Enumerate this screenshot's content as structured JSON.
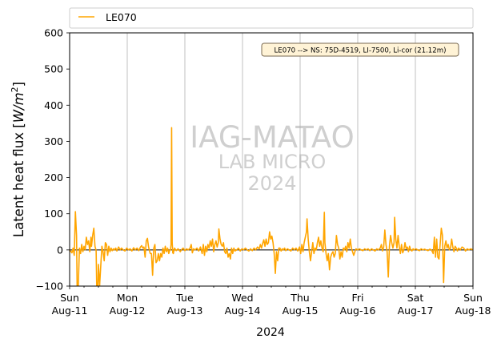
{
  "chart_data": {
    "type": "line",
    "ylabel": "Latent heat flux [W/m²]",
    "ylabel_parts": {
      "main": "Latent heat flux [",
      "var": "W",
      "slash": "/",
      "m": "m",
      "exp": "2",
      "end": "]"
    },
    "xlabel": "2024",
    "ylim": [
      -100,
      600
    ],
    "yticks": [
      -100,
      0,
      100,
      200,
      300,
      400,
      500,
      600
    ],
    "xlim_days": [
      0,
      7
    ],
    "xticks": [
      {
        "day": "Sun",
        "date": "Aug-11"
      },
      {
        "day": "Mon",
        "date": "Aug-12"
      },
      {
        "day": "Tue",
        "date": "Aug-13"
      },
      {
        "day": "Wed",
        "date": "Aug-14"
      },
      {
        "day": "Thu",
        "date": "Aug-15"
      },
      {
        "day": "Fri",
        "date": "Aug-16"
      },
      {
        "day": "Sat",
        "date": "Aug-17"
      },
      {
        "day": "Sun",
        "date": "Aug-18"
      }
    ],
    "vertical_grid": true,
    "zero_line": true,
    "legend": {
      "placement": "top-outside",
      "entries": [
        "LE070"
      ]
    },
    "annotation": "LE070 --> NS: 75D-4519, LI-7500, Li-cor (21.12m)",
    "watermark": [
      "IAG-MATAO",
      "LAB MICRO",
      "2024"
    ],
    "series": [
      {
        "name": "LE070",
        "color": "#FFA500",
        "points": [
          [
            0.0,
            0
          ],
          [
            0.04,
            -8
          ],
          [
            0.06,
            5
          ],
          [
            0.08,
            -15
          ],
          [
            0.1,
            106
          ],
          [
            0.12,
            40
          ],
          [
            0.13,
            -100
          ],
          [
            0.15,
            -100
          ],
          [
            0.17,
            5
          ],
          [
            0.19,
            -10
          ],
          [
            0.21,
            15
          ],
          [
            0.23,
            -5
          ],
          [
            0.25,
            10
          ],
          [
            0.27,
            0
          ],
          [
            0.29,
            35
          ],
          [
            0.31,
            15
          ],
          [
            0.33,
            25
          ],
          [
            0.35,
            -5
          ],
          [
            0.37,
            35
          ],
          [
            0.38,
            10
          ],
          [
            0.4,
            40
          ],
          [
            0.42,
            60
          ],
          [
            0.44,
            10
          ],
          [
            0.46,
            -2
          ],
          [
            0.47,
            -100
          ],
          [
            0.49,
            -100
          ],
          [
            0.5,
            -40
          ],
          [
            0.52,
            -100
          ],
          [
            0.54,
            -45
          ],
          [
            0.56,
            10
          ],
          [
            0.58,
            -5
          ],
          [
            0.6,
            -30
          ],
          [
            0.62,
            20
          ],
          [
            0.64,
            15
          ],
          [
            0.66,
            -15
          ],
          [
            0.68,
            10
          ],
          [
            0.7,
            -5
          ],
          [
            0.72,
            5
          ],
          [
            0.74,
            -2
          ],
          [
            0.76,
            3
          ],
          [
            0.78,
            0
          ],
          [
            0.8,
            5
          ],
          [
            0.82,
            -3
          ],
          [
            0.85,
            8
          ],
          [
            0.88,
            0
          ],
          [
            0.9,
            5
          ],
          [
            0.93,
            0
          ],
          [
            0.96,
            -3
          ],
          [
            0.99,
            5
          ],
          [
            1.02,
            0
          ],
          [
            1.05,
            3
          ],
          [
            1.08,
            -3
          ],
          [
            1.11,
            6
          ],
          [
            1.14,
            0
          ],
          [
            1.17,
            5
          ],
          [
            1.2,
            -2
          ],
          [
            1.23,
            8
          ],
          [
            1.25,
            12
          ],
          [
            1.27,
            5
          ],
          [
            1.29,
            8
          ],
          [
            1.31,
            -20
          ],
          [
            1.33,
            25
          ],
          [
            1.35,
            32
          ],
          [
            1.37,
            8
          ],
          [
            1.39,
            -5
          ],
          [
            1.4,
            -10
          ],
          [
            1.42,
            -10
          ],
          [
            1.44,
            -70
          ],
          [
            1.46,
            5
          ],
          [
            1.48,
            15
          ],
          [
            1.5,
            -35
          ],
          [
            1.52,
            -30
          ],
          [
            1.54,
            -10
          ],
          [
            1.56,
            -30
          ],
          [
            1.58,
            -10
          ],
          [
            1.6,
            -20
          ],
          [
            1.62,
            5
          ],
          [
            1.64,
            -10
          ],
          [
            1.66,
            10
          ],
          [
            1.68,
            -5
          ],
          [
            1.7,
            5
          ],
          [
            1.72,
            -10
          ],
          [
            1.74,
            0
          ],
          [
            1.75,
            0
          ],
          [
            1.76,
            15
          ],
          [
            1.77,
            338
          ],
          [
            1.78,
            20
          ],
          [
            1.79,
            -8
          ],
          [
            1.8,
            -10
          ],
          [
            1.82,
            5
          ],
          [
            1.85,
            -2
          ],
          [
            1.88,
            3
          ],
          [
            1.9,
            0
          ],
          [
            1.92,
            -5
          ],
          [
            1.94,
            0
          ],
          [
            1.97,
            5
          ],
          [
            2.0,
            -2
          ],
          [
            2.03,
            3
          ],
          [
            2.06,
            0
          ],
          [
            2.09,
            5
          ],
          [
            2.11,
            15
          ],
          [
            2.13,
            -8
          ],
          [
            2.15,
            3
          ],
          [
            2.18,
            0
          ],
          [
            2.21,
            5
          ],
          [
            2.24,
            -3
          ],
          [
            2.27,
            8
          ],
          [
            2.3,
            -10
          ],
          [
            2.32,
            15
          ],
          [
            2.34,
            -15
          ],
          [
            2.36,
            10
          ],
          [
            2.38,
            -5
          ],
          [
            2.4,
            15
          ],
          [
            2.42,
            5
          ],
          [
            2.44,
            25
          ],
          [
            2.46,
            10
          ],
          [
            2.48,
            30
          ],
          [
            2.5,
            -5
          ],
          [
            2.52,
            15
          ],
          [
            2.54,
            25
          ],
          [
            2.56,
            8
          ],
          [
            2.58,
            20
          ],
          [
            2.59,
            58
          ],
          [
            2.61,
            30
          ],
          [
            2.63,
            15
          ],
          [
            2.65,
            10
          ],
          [
            2.67,
            20
          ],
          [
            2.69,
            -5
          ],
          [
            2.71,
            -10
          ],
          [
            2.73,
            5
          ],
          [
            2.75,
            -20
          ],
          [
            2.77,
            -10
          ],
          [
            2.79,
            -25
          ],
          [
            2.81,
            5
          ],
          [
            2.83,
            -10
          ],
          [
            2.85,
            5
          ],
          [
            2.87,
            -3
          ],
          [
            2.9,
            0
          ],
          [
            2.93,
            5
          ],
          [
            2.96,
            -3
          ],
          [
            2.99,
            3
          ],
          [
            3.02,
            0
          ],
          [
            3.05,
            5
          ],
          [
            3.08,
            0
          ],
          [
            3.11,
            -3
          ],
          [
            3.14,
            3
          ],
          [
            3.17,
            -2
          ],
          [
            3.2,
            5
          ],
          [
            3.23,
            0
          ],
          [
            3.26,
            8
          ],
          [
            3.29,
            3
          ],
          [
            3.31,
            15
          ],
          [
            3.33,
            5
          ],
          [
            3.35,
            18
          ],
          [
            3.37,
            28
          ],
          [
            3.39,
            10
          ],
          [
            3.41,
            30
          ],
          [
            3.43,
            15
          ],
          [
            3.45,
            20
          ],
          [
            3.47,
            50
          ],
          [
            3.49,
            30
          ],
          [
            3.51,
            38
          ],
          [
            3.53,
            20
          ],
          [
            3.55,
            -10
          ],
          [
            3.57,
            -65
          ],
          [
            3.59,
            -5
          ],
          [
            3.61,
            -30
          ],
          [
            3.63,
            5
          ],
          [
            3.65,
            5
          ],
          [
            3.67,
            -3
          ],
          [
            3.69,
            3
          ],
          [
            3.71,
            0
          ],
          [
            3.73,
            5
          ],
          [
            3.75,
            -2
          ],
          [
            3.78,
            3
          ],
          [
            3.81,
            0
          ],
          [
            3.84,
            -3
          ],
          [
            3.87,
            5
          ],
          [
            3.9,
            0
          ],
          [
            3.93,
            5
          ],
          [
            3.96,
            -3
          ],
          [
            3.99,
            8
          ],
          [
            4.01,
            -10
          ],
          [
            4.03,
            15
          ],
          [
            4.05,
            -5
          ],
          [
            4.07,
            20
          ],
          [
            4.09,
            35
          ],
          [
            4.11,
            50
          ],
          [
            4.12,
            86
          ],
          [
            4.14,
            30
          ],
          [
            4.16,
            -5
          ],
          [
            4.18,
            -30
          ],
          [
            4.2,
            -5
          ],
          [
            4.22,
            20
          ],
          [
            4.24,
            -10
          ],
          [
            4.26,
            5
          ],
          [
            4.28,
            0
          ],
          [
            4.3,
            20
          ],
          [
            4.32,
            35
          ],
          [
            4.34,
            10
          ],
          [
            4.36,
            25
          ],
          [
            4.38,
            5
          ],
          [
            4.4,
            -5
          ],
          [
            4.42,
            104
          ],
          [
            4.43,
            20
          ],
          [
            4.45,
            -10
          ],
          [
            4.47,
            -30
          ],
          [
            4.49,
            -10
          ],
          [
            4.51,
            -55
          ],
          [
            4.53,
            -20
          ],
          [
            4.55,
            -10
          ],
          [
            4.57,
            -5
          ],
          [
            4.59,
            -20
          ],
          [
            4.61,
            -10
          ],
          [
            4.63,
            40
          ],
          [
            4.65,
            15
          ],
          [
            4.67,
            5
          ],
          [
            4.69,
            -25
          ],
          [
            4.71,
            -5
          ],
          [
            4.73,
            -20
          ],
          [
            4.75,
            5
          ],
          [
            4.77,
            0
          ],
          [
            4.79,
            10
          ],
          [
            4.81,
            -5
          ],
          [
            4.83,
            20
          ],
          [
            4.85,
            5
          ],
          [
            4.87,
            30
          ],
          [
            4.89,
            5
          ],
          [
            4.91,
            -5
          ],
          [
            4.93,
            -15
          ],
          [
            4.95,
            -5
          ],
          [
            4.97,
            3
          ],
          [
            5.0,
            0
          ],
          [
            5.03,
            3
          ],
          [
            5.06,
            0
          ],
          [
            5.09,
            -2
          ],
          [
            5.12,
            3
          ],
          [
            5.15,
            0
          ],
          [
            5.18,
            3
          ],
          [
            5.21,
            -2
          ],
          [
            5.24,
            3
          ],
          [
            5.27,
            0
          ],
          [
            5.3,
            -3
          ],
          [
            5.33,
            3
          ],
          [
            5.36,
            0
          ],
          [
            5.39,
            5
          ],
          [
            5.41,
            15
          ],
          [
            5.43,
            -3
          ],
          [
            5.45,
            8
          ],
          [
            5.47,
            55
          ],
          [
            5.49,
            15
          ],
          [
            5.51,
            -5
          ],
          [
            5.53,
            -75
          ],
          [
            5.55,
            10
          ],
          [
            5.57,
            40
          ],
          [
            5.59,
            20
          ],
          [
            5.61,
            5
          ],
          [
            5.63,
            20
          ],
          [
            5.64,
            90
          ],
          [
            5.66,
            30
          ],
          [
            5.68,
            5
          ],
          [
            5.7,
            40
          ],
          [
            5.72,
            10
          ],
          [
            5.74,
            -10
          ],
          [
            5.76,
            15
          ],
          [
            5.78,
            -8
          ],
          [
            5.8,
            0
          ],
          [
            5.82,
            20
          ],
          [
            5.84,
            3
          ],
          [
            5.86,
            8
          ],
          [
            5.88,
            -5
          ],
          [
            5.9,
            10
          ],
          [
            5.92,
            0
          ],
          [
            5.94,
            -3
          ],
          [
            5.96,
            3
          ],
          [
            5.98,
            0
          ],
          [
            6.01,
            3
          ],
          [
            6.04,
            0
          ],
          [
            6.07,
            -2
          ],
          [
            6.1,
            3
          ],
          [
            6.13,
            0
          ],
          [
            6.16,
            2
          ],
          [
            6.19,
            0
          ],
          [
            6.22,
            -2
          ],
          [
            6.25,
            2
          ],
          [
            6.28,
            0
          ],
          [
            6.31,
            -10
          ],
          [
            6.33,
            35
          ],
          [
            6.35,
            -20
          ],
          [
            6.37,
            30
          ],
          [
            6.39,
            -20
          ],
          [
            6.41,
            -25
          ],
          [
            6.43,
            15
          ],
          [
            6.45,
            60
          ],
          [
            6.47,
            40
          ],
          [
            6.49,
            -90
          ],
          [
            6.51,
            10
          ],
          [
            6.53,
            25
          ],
          [
            6.55,
            5
          ],
          [
            6.57,
            15
          ],
          [
            6.59,
            0
          ],
          [
            6.61,
            5
          ],
          [
            6.63,
            30
          ],
          [
            6.65,
            8
          ],
          [
            6.67,
            -5
          ],
          [
            6.69,
            10
          ],
          [
            6.71,
            5
          ],
          [
            6.73,
            -3
          ],
          [
            6.75,
            5
          ],
          [
            6.78,
            0
          ],
          [
            6.81,
            8
          ],
          [
            6.84,
            5
          ],
          [
            6.87,
            -3
          ],
          [
            6.9,
            3
          ],
          [
            6.93,
            0
          ],
          [
            6.96,
            3
          ],
          [
            7.0,
            0
          ]
        ]
      }
    ]
  }
}
